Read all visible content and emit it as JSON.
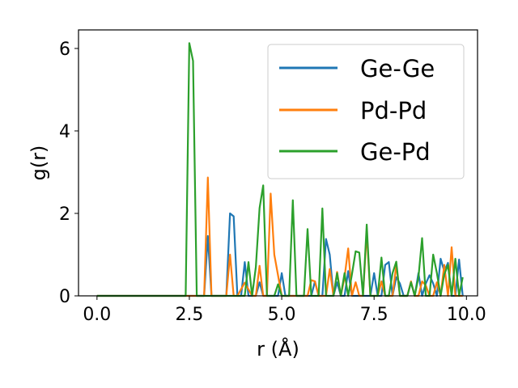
{
  "chart_data": {
    "type": "line",
    "xlabel": "r (Å)",
    "ylabel": "g(r)",
    "xlim": [
      -0.5,
      10.3
    ],
    "ylim": [
      0,
      6.45
    ],
    "xticks": [
      "0.0",
      "2.5",
      "5.0",
      "7.5",
      "10.0"
    ],
    "yticks": [
      "0",
      "2",
      "4",
      "6"
    ],
    "grid": false,
    "legend_position": "top-right",
    "series": [
      {
        "name": "Ge-Ge",
        "color": "#1f77b4",
        "x": [
          0.0,
          2.9,
          3.0,
          3.1,
          3.2,
          3.5,
          3.6,
          3.7,
          3.8,
          3.9,
          4.0,
          4.1,
          4.2,
          4.3,
          4.4,
          4.5,
          4.9,
          5.0,
          5.1,
          5.2,
          5.3,
          5.5,
          5.6,
          5.7,
          5.8,
          5.9,
          6.0,
          6.1,
          6.2,
          6.3,
          6.4,
          6.5,
          6.6,
          6.7,
          6.8,
          6.9,
          7.0,
          7.1,
          7.2,
          7.3,
          7.4,
          7.5,
          7.6,
          7.7,
          7.8,
          7.9,
          8.0,
          8.1,
          8.2,
          8.3,
          8.4,
          8.5,
          8.6,
          8.7,
          8.8,
          8.9,
          9.0,
          9.1,
          9.2,
          9.3,
          9.4,
          9.5,
          9.6,
          9.7,
          9.8,
          9.9
        ],
        "y": [
          0.0,
          0.0,
          1.45,
          0.0,
          0.0,
          0.0,
          2.0,
          1.93,
          0.0,
          0.0,
          0.82,
          0.0,
          0.0,
          0.0,
          0.33,
          0.0,
          0.0,
          0.55,
          0.0,
          0.0,
          0.0,
          0.0,
          0.0,
          0.0,
          0.0,
          0.35,
          0.0,
          0.0,
          1.38,
          1.0,
          0.0,
          0.33,
          0.0,
          0.0,
          0.6,
          0.0,
          0.0,
          0.0,
          0.0,
          0.0,
          0.0,
          0.55,
          0.0,
          0.0,
          0.75,
          0.82,
          0.0,
          0.45,
          0.3,
          0.0,
          0.0,
          0.33,
          0.0,
          0.55,
          0.0,
          0.3,
          0.5,
          0.3,
          0.0,
          0.9,
          0.6,
          0.8,
          0.0,
          0.0,
          0.88,
          0.0
        ]
      },
      {
        "name": "Pd-Pd",
        "color": "#ff7f0e",
        "x": [
          0.0,
          2.9,
          3.0,
          3.1,
          3.3,
          3.4,
          3.5,
          3.6,
          3.7,
          3.8,
          4.0,
          4.2,
          4.3,
          4.4,
          4.5,
          4.6,
          4.7,
          4.8,
          5.0,
          5.6,
          5.7,
          5.8,
          5.9,
          6.0,
          6.1,
          6.2,
          6.3,
          6.4,
          6.5,
          6.6,
          6.7,
          6.8,
          6.9,
          7.0,
          7.1,
          7.2,
          7.3,
          7.4,
          7.5,
          7.6,
          7.7,
          7.8,
          7.9,
          8.0,
          8.1,
          8.2,
          8.3,
          8.4,
          8.5,
          8.6,
          8.7,
          8.8,
          8.9,
          9.0,
          9.1,
          9.2,
          9.3,
          9.4,
          9.5,
          9.6,
          9.7,
          9.8,
          9.9
        ],
        "y": [
          0.0,
          0.0,
          2.87,
          0.0,
          0.0,
          0.0,
          0.0,
          1.0,
          0.0,
          0.0,
          0.32,
          0.0,
          0.0,
          0.73,
          0.0,
          0.0,
          2.48,
          1.0,
          0.0,
          0.0,
          0.0,
          0.38,
          0.35,
          0.0,
          0.0,
          0.0,
          0.65,
          0.0,
          0.58,
          0.0,
          0.45,
          1.15,
          0.0,
          0.33,
          0.0,
          0.0,
          1.55,
          0.0,
          0.0,
          0.0,
          0.35,
          0.0,
          0.0,
          0.0,
          0.75,
          0.0,
          0.0,
          0.0,
          0.35,
          0.0,
          0.0,
          0.35,
          0.25,
          0.0,
          0.0,
          0.33,
          0.0,
          0.75,
          0.0,
          1.18,
          0.0,
          0.0,
          0.0
        ]
      },
      {
        "name": "Ge-Pd",
        "color": "#2ca02c",
        "x": [
          0.0,
          2.4,
          2.5,
          2.6,
          2.7,
          4.0,
          4.1,
          4.2,
          4.3,
          4.4,
          4.5,
          4.6,
          4.8,
          4.9,
          5.0,
          5.2,
          5.3,
          5.4,
          5.5,
          5.6,
          5.7,
          5.8,
          5.9,
          6.0,
          6.1,
          6.2,
          6.3,
          6.4,
          6.5,
          6.6,
          6.7,
          6.8,
          6.9,
          7.0,
          7.1,
          7.2,
          7.3,
          7.4,
          7.5,
          7.6,
          7.7,
          7.8,
          7.9,
          8.0,
          8.1,
          8.2,
          8.3,
          8.4,
          8.5,
          8.6,
          8.7,
          8.8,
          8.9,
          9.0,
          9.1,
          9.2,
          9.3,
          9.4,
          9.5,
          9.6,
          9.7,
          9.8,
          9.9
        ],
        "y": [
          0.0,
          0.0,
          6.13,
          5.7,
          0.0,
          0.0,
          0.82,
          0.0,
          0.7,
          2.13,
          2.68,
          0.0,
          0.0,
          0.28,
          0.0,
          0.0,
          2.32,
          0.0,
          0.0,
          0.0,
          1.62,
          0.0,
          0.0,
          0.0,
          2.12,
          0.0,
          0.0,
          0.0,
          0.55,
          0.0,
          0.55,
          0.0,
          0.52,
          1.08,
          1.05,
          0.0,
          1.73,
          0.0,
          0.0,
          0.0,
          0.93,
          0.0,
          0.0,
          0.55,
          0.83,
          0.0,
          0.0,
          0.0,
          0.33,
          0.0,
          0.45,
          1.4,
          0.0,
          0.0,
          1.0,
          0.55,
          0.0,
          0.52,
          0.75,
          0.0,
          0.9,
          0.0,
          0.45
        ]
      }
    ]
  }
}
